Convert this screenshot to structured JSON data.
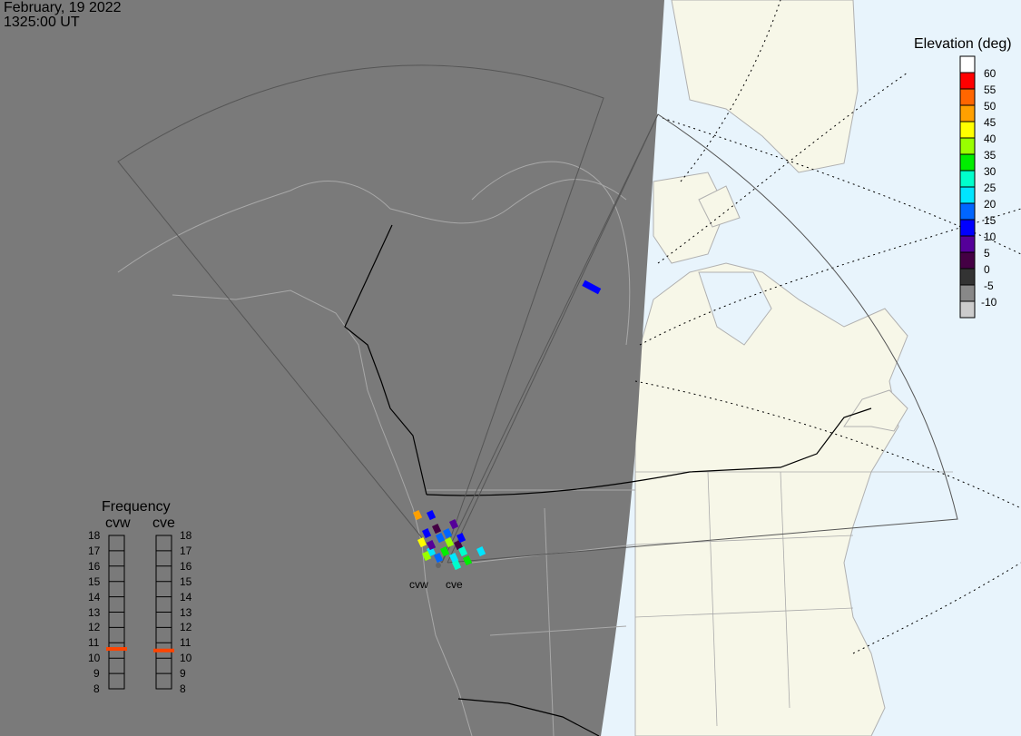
{
  "header": {
    "date": "February, 19 2022",
    "time": "1325:00 UT"
  },
  "elevation_legend": {
    "title": "Elevation (deg)",
    "levels": [
      {
        "label": "60",
        "color": "#ffffff"
      },
      {
        "label": "55",
        "color": "#ff0000"
      },
      {
        "label": "50",
        "color": "#ff6600"
      },
      {
        "label": "45",
        "color": "#ffa000"
      },
      {
        "label": "40",
        "color": "#ffff00"
      },
      {
        "label": "35",
        "color": "#99ff00"
      },
      {
        "label": "30",
        "color": "#00ee00"
      },
      {
        "label": "25",
        "color": "#00ffcc"
      },
      {
        "label": "20",
        "color": "#00e5ff"
      },
      {
        "label": "15",
        "color": "#0066ff"
      },
      {
        "label": "10",
        "color": "#0000ff"
      },
      {
        "label": "5",
        "color": "#550099"
      },
      {
        "label": "0",
        "color": "#440044"
      },
      {
        "label": "-5",
        "color": "#333333"
      },
      {
        "label": "-10",
        "color": "#888888"
      },
      {
        "label": "",
        "color": "#cccccc"
      }
    ]
  },
  "frequency": {
    "title": "Frequency",
    "scale": [
      "18",
      "17",
      "16",
      "15",
      "14",
      "13",
      "12",
      "11",
      "10",
      "9",
      "8"
    ],
    "radars": [
      {
        "name": "cvw",
        "value_mhz": 10.6
      },
      {
        "name": "cve",
        "value_mhz": 10.5
      }
    ],
    "marker_color": "#ff4400"
  },
  "radar_labels": [
    "cvw",
    "cve"
  ],
  "colors": {
    "night": "#7a7a7a",
    "land": "#f7f7e8",
    "ocean": "#e8f4fc"
  }
}
